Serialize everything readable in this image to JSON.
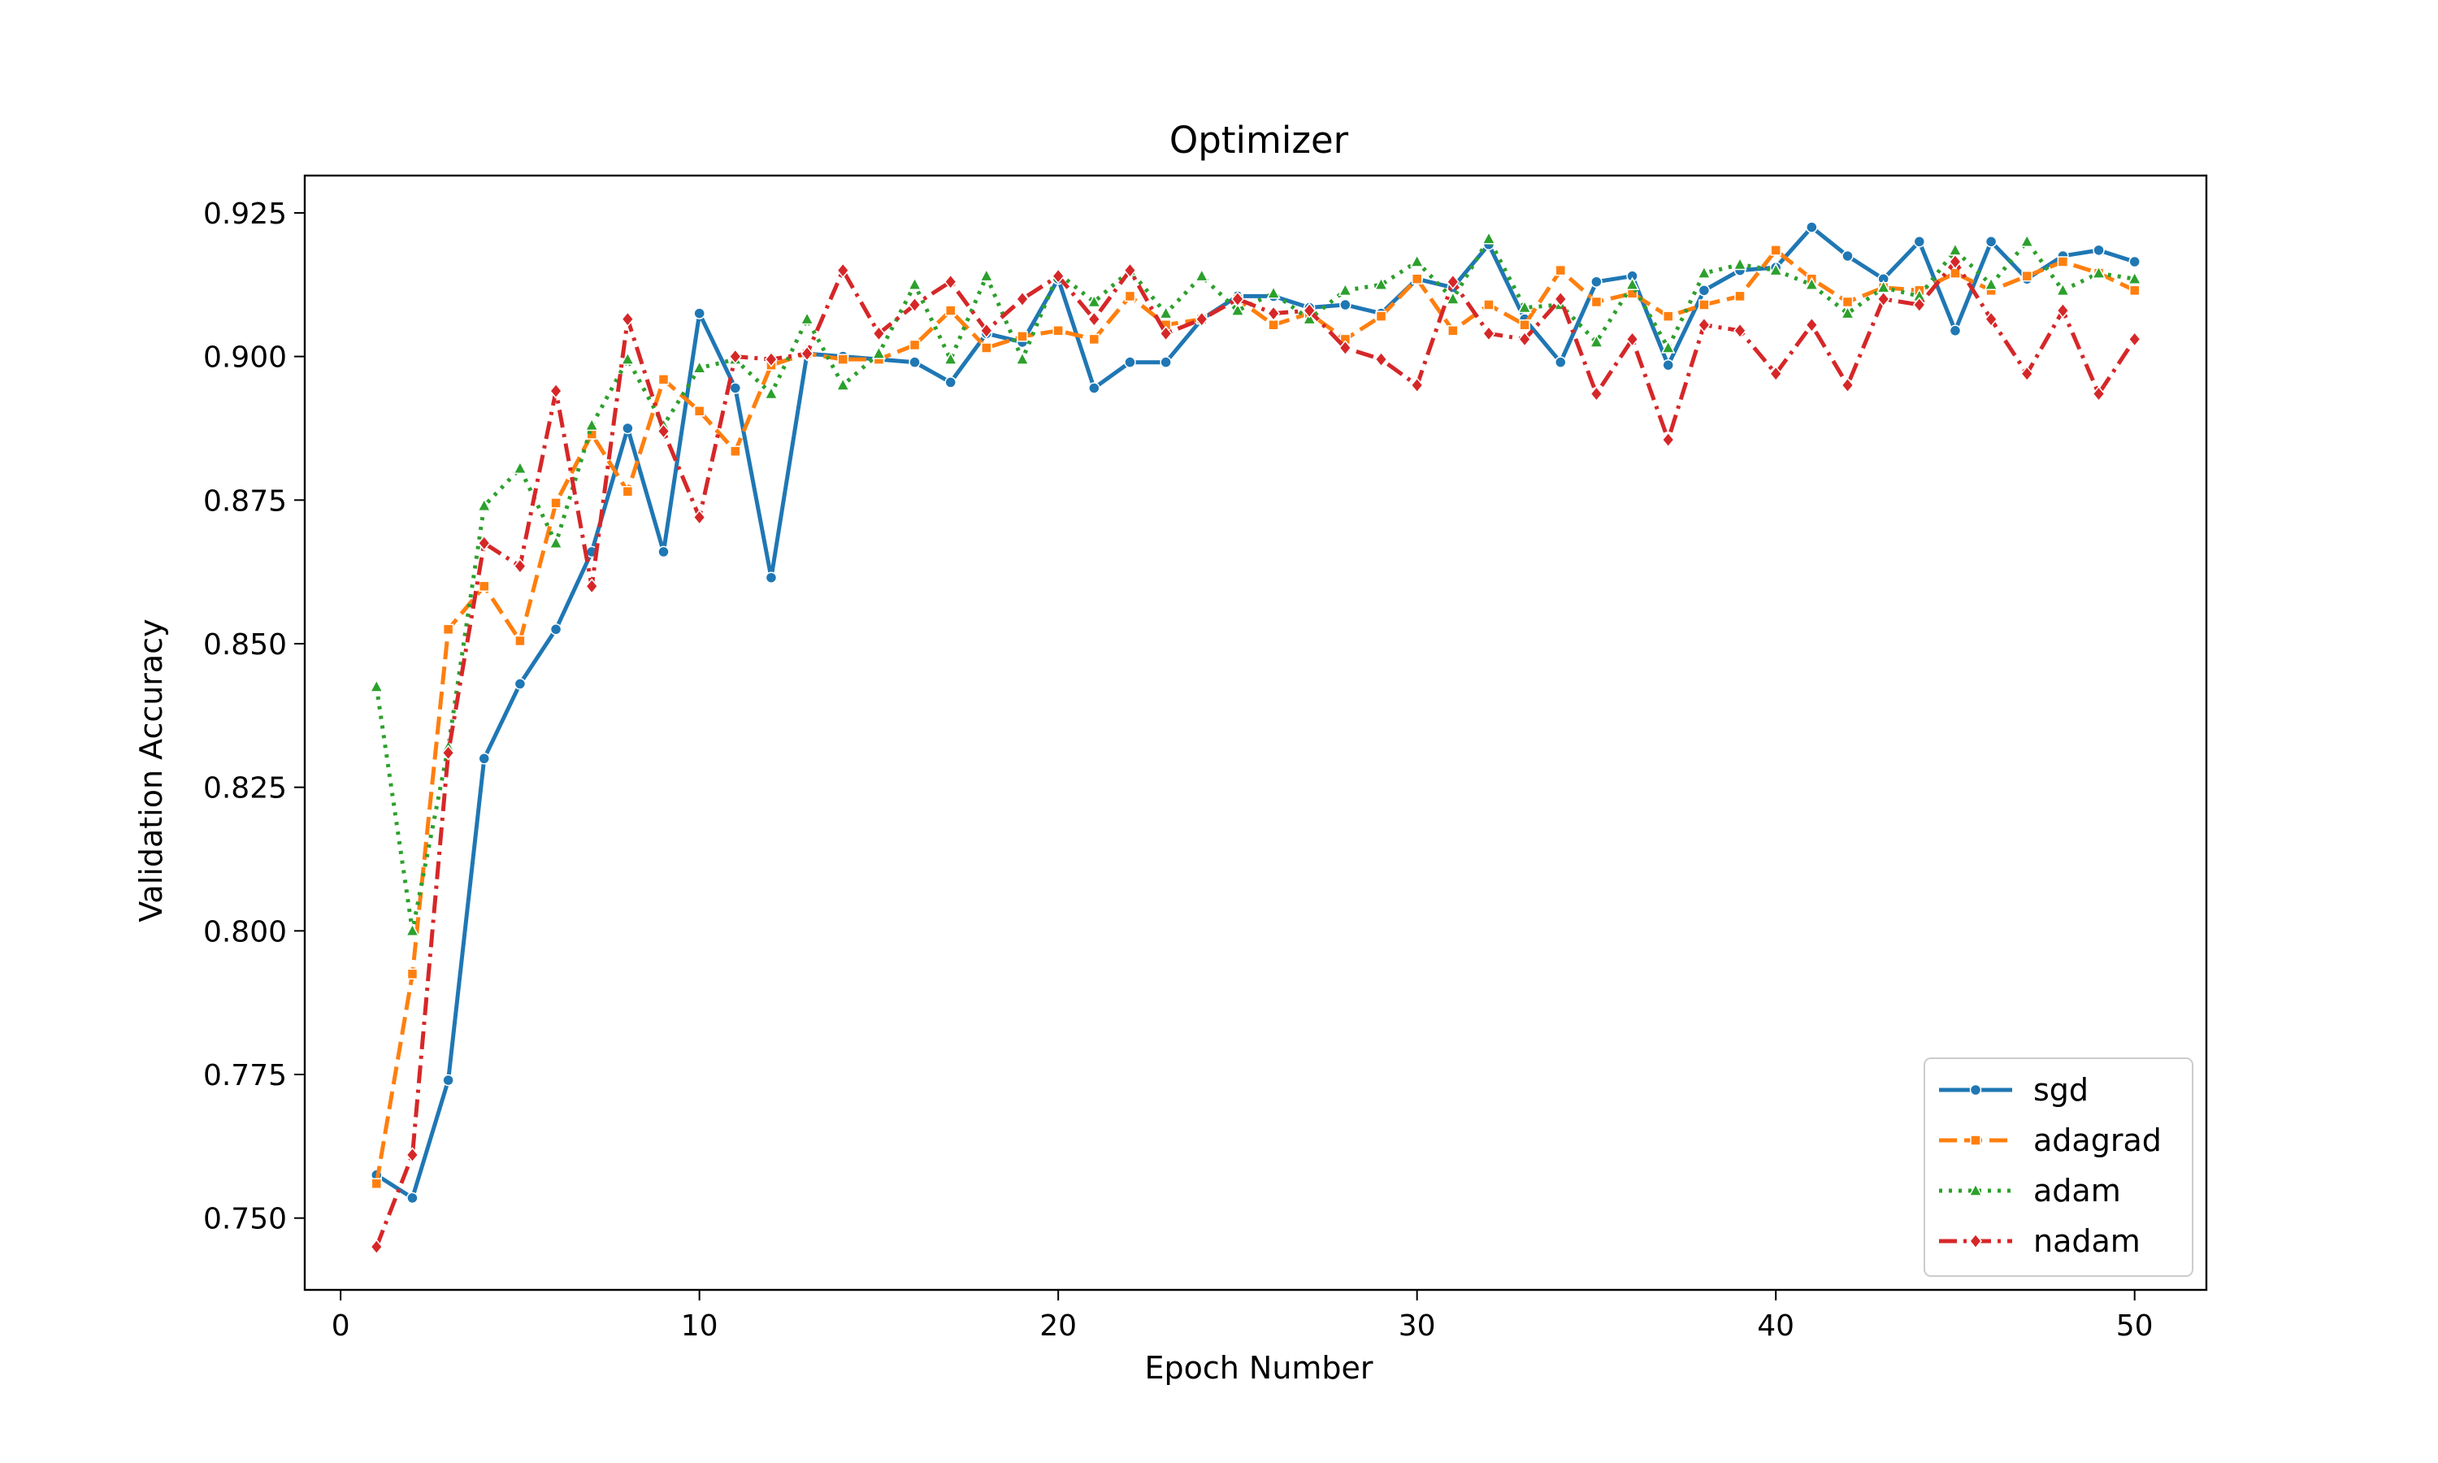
{
  "chart_data": {
    "type": "line",
    "title": "Optimizer",
    "xlabel": "Epoch Number",
    "ylabel": "Validation Accuracy",
    "xlim": [
      -1,
      52
    ],
    "ylim": [
      0.7375,
      0.9315
    ],
    "xticks": [
      0,
      10,
      20,
      30,
      40,
      50
    ],
    "xtick_labels": [
      "0",
      "10",
      "20",
      "30",
      "40",
      "50"
    ],
    "yticks": [
      0.75,
      0.775,
      0.8,
      0.825,
      0.85,
      0.875,
      0.9,
      0.925
    ],
    "ytick_labels": [
      "0.750",
      "0.775",
      "0.800",
      "0.825",
      "0.850",
      "0.875",
      "0.900",
      "0.925"
    ],
    "grid": false,
    "legend": "lower right",
    "x": [
      1,
      2,
      3,
      4,
      5,
      6,
      7,
      8,
      9,
      10,
      11,
      12,
      13,
      14,
      15,
      16,
      17,
      18,
      19,
      20,
      21,
      22,
      23,
      24,
      25,
      26,
      27,
      28,
      29,
      30,
      31,
      32,
      33,
      34,
      35,
      36,
      37,
      38,
      39,
      40,
      41,
      42,
      43,
      44,
      45,
      46,
      47,
      48,
      49,
      50
    ],
    "series": [
      {
        "name": "sgd",
        "color": "#1f77b4",
        "dash": "solid",
        "marker": "circle",
        "values": [
          0.7575,
          0.7535,
          0.774,
          0.83,
          0.843,
          0.8525,
          0.866,
          0.8875,
          0.866,
          0.9075,
          0.8945,
          0.8615,
          0.9005,
          0.9,
          0.8995,
          0.899,
          0.8955,
          0.904,
          0.9025,
          0.9135,
          0.8945,
          0.899,
          0.899,
          0.9065,
          0.9105,
          0.9105,
          0.9085,
          0.909,
          0.9075,
          0.9135,
          0.912,
          0.9195,
          0.9065,
          0.899,
          0.913,
          0.914,
          0.8985,
          0.9115,
          0.915,
          0.9155,
          0.9225,
          0.9175,
          0.9135,
          0.92,
          0.9045,
          0.92,
          0.9135,
          0.9175,
          0.9185,
          0.9165
        ]
      },
      {
        "name": "adagrad",
        "color": "#ff7f0e",
        "dash": "dashed",
        "marker": "square",
        "values": [
          0.756,
          0.7925,
          0.8525,
          0.86,
          0.8505,
          0.8745,
          0.8865,
          0.8765,
          0.896,
          0.8905,
          0.8835,
          0.8985,
          0.9005,
          0.8995,
          0.8995,
          0.902,
          0.908,
          0.9015,
          0.9035,
          0.9045,
          0.903,
          0.9105,
          0.9055,
          0.9065,
          0.91,
          0.9055,
          0.9075,
          0.903,
          0.907,
          0.9135,
          0.9045,
          0.909,
          0.9055,
          0.915,
          0.9095,
          0.911,
          0.907,
          0.909,
          0.9105,
          0.9185,
          0.9135,
          0.9095,
          0.912,
          0.9115,
          0.9145,
          0.9115,
          0.914,
          0.9165,
          0.9145,
          0.9115
        ]
      },
      {
        "name": "adam",
        "color": "#2ca02c",
        "dash": "dotted",
        "marker": "triangle",
        "values": [
          0.8425,
          0.8,
          0.832,
          0.874,
          0.8805,
          0.8675,
          0.888,
          0.8995,
          0.888,
          0.898,
          0.8995,
          0.8935,
          0.9065,
          0.895,
          0.9005,
          0.9125,
          0.8995,
          0.914,
          0.8995,
          0.9145,
          0.9095,
          0.915,
          0.9075,
          0.914,
          0.908,
          0.911,
          0.9065,
          0.9115,
          0.9125,
          0.9165,
          0.91,
          0.9205,
          0.9085,
          0.909,
          0.9025,
          0.9125,
          0.9015,
          0.9145,
          0.916,
          0.915,
          0.9125,
          0.9075,
          0.912,
          0.9105,
          0.9185,
          0.9125,
          0.92,
          0.9115,
          0.9145,
          0.9135
        ]
      },
      {
        "name": "nadam",
        "color": "#d62728",
        "dash": "dashdot",
        "marker": "diamond",
        "values": [
          0.745,
          0.761,
          0.831,
          0.8675,
          0.8635,
          0.894,
          0.86,
          0.9065,
          0.887,
          0.872,
          0.9,
          0.8995,
          0.9005,
          0.915,
          0.904,
          0.909,
          0.913,
          0.9045,
          0.91,
          0.914,
          0.9065,
          0.915,
          0.904,
          0.9065,
          0.91,
          0.9075,
          0.908,
          0.9015,
          0.8995,
          0.895,
          0.913,
          0.904,
          0.903,
          0.91,
          0.8935,
          0.903,
          0.8855,
          0.9055,
          0.9045,
          0.897,
          0.9055,
          0.895,
          0.91,
          0.909,
          0.9165,
          0.9065,
          0.897,
          0.908,
          0.8935,
          0.903
        ]
      }
    ]
  }
}
